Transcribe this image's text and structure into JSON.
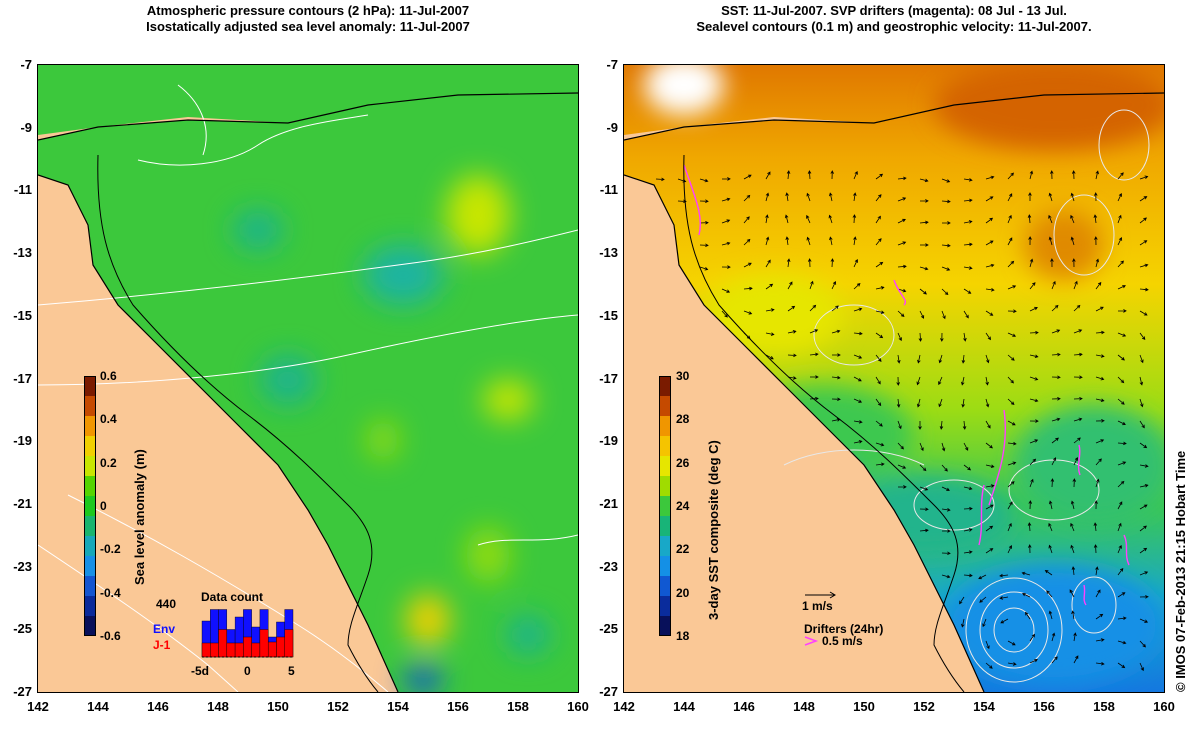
{
  "left_panel": {
    "title_line1": "Atmospheric pressure contours (2 hPa): 11-Jul-2007",
    "title_line2": "Isostatically adjusted sea level anomaly: 11-Jul-2007",
    "colorbar": {
      "label": "Sea level anomaly (m)",
      "ticks": [
        "0.6",
        "0.4",
        "0.2",
        "0",
        "-0.2",
        "-0.4",
        "-0.6"
      ],
      "colors": [
        "#7a1b00",
        "#c54a00",
        "#f09600",
        "#f0d000",
        "#c8e600",
        "#55d400",
        "#1ec81e",
        "#1ab46e",
        "#18a8b8",
        "#1890e6",
        "#1455d0",
        "#0a2a9a",
        "#08105a"
      ]
    },
    "data_count_inset": {
      "title": "Data count",
      "max_label": "440",
      "series": [
        {
          "name": "Env",
          "color": "#1010ff",
          "values": [
            0.72,
            0.95,
            0.95,
            0.55,
            0.8,
            0.95,
            0.6,
            0.95,
            0.4,
            0.7,
            0.95
          ]
        },
        {
          "name": "J-1",
          "color": "#ff0000",
          "values": [
            0.28,
            0.28,
            0.55,
            0.28,
            0.28,
            0.4,
            0.28,
            0.55,
            0.3,
            0.4,
            0.55
          ]
        }
      ],
      "x_ticks": [
        "-5d",
        "0",
        "5"
      ]
    }
  },
  "right_panel": {
    "title_line1": "SST: 11-Jul-2007. SVP drifters (magenta): 08 Jul - 13 Jul.",
    "title_line2": "Sealevel contours (0.1 m) and geostrophic velocity: 11-Jul-2007.",
    "colorbar": {
      "label": "3-day SST composite (deg C)",
      "ticks": [
        "30",
        "28",
        "26",
        "24",
        "22",
        "20",
        "18"
      ],
      "colors": [
        "#7a1b00",
        "#c54a00",
        "#f09600",
        "#f5c400",
        "#e6e600",
        "#a0dc00",
        "#3cc83c",
        "#18b478",
        "#18a8c8",
        "#1490e6",
        "#1058d2",
        "#0a2c9c",
        "#08105a"
      ]
    },
    "velocity_key": "1 m/s",
    "drifters_key_title": "Drifters (24hr)",
    "drifters_key_speed": "0.5 m/s"
  },
  "axes": {
    "lat_ticks": [
      "-7",
      "-9",
      "-11",
      "-13",
      "-15",
      "-17",
      "-19",
      "-21",
      "-23",
      "-25",
      "-27"
    ],
    "lon_ticks": [
      "142",
      "144",
      "146",
      "148",
      "150",
      "152",
      "154",
      "156",
      "158",
      "160"
    ]
  },
  "colors": {
    "land": "#fac896",
    "ocean_left": "#3cc83c",
    "contour": "#ffffff",
    "coast": "#000000",
    "drifter": "#ff40ff"
  },
  "watermark": "© IMOS 07-Feb-2013 21:15 Hobart Time"
}
